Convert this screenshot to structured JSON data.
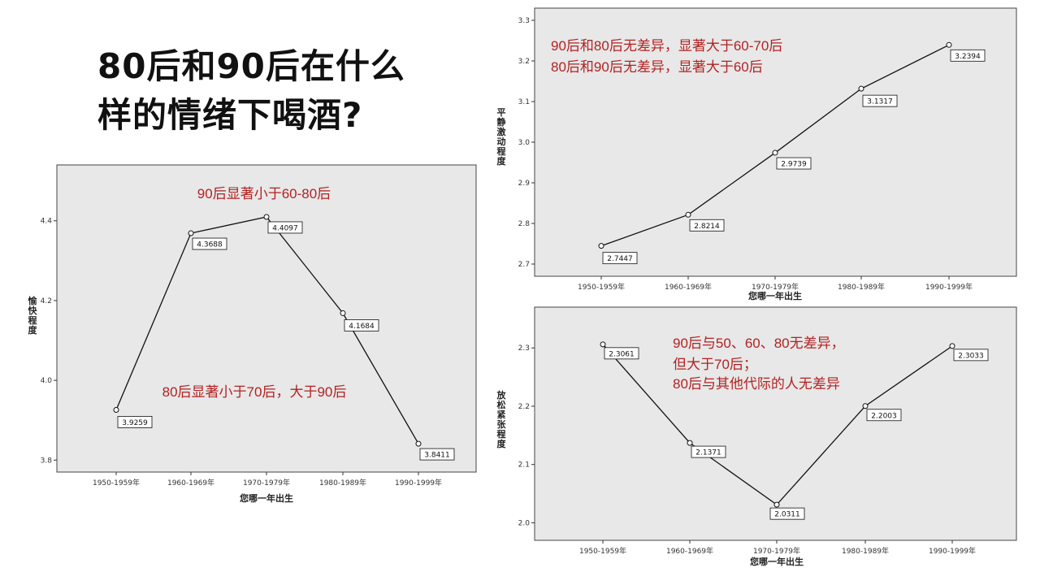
{
  "headline": {
    "line1": "80后和90后在什么",
    "line2": "样的情绪下喝酒?"
  },
  "colors": {
    "annotation": "#b32222",
    "plot_background": "#e8e8e8"
  },
  "chart_data": [
    {
      "type": "line",
      "categories": [
        "1950-1959年",
        "1960-1969年",
        "1970-1979年",
        "1980-1989年",
        "1990-1999年"
      ],
      "values": [
        3.9259,
        4.3688,
        4.4097,
        4.1684,
        3.8411
      ],
      "value_labels": [
        "3.9259",
        "4.3688",
        "4.4097",
        "4.1684",
        "3.8411"
      ],
      "ylim": [
        3.77,
        4.54
      ],
      "yticks": [
        3.8,
        4.0,
        4.2,
        4.4
      ],
      "ytick_labels": [
        "3.8",
        "4.0",
        "4.2",
        "4.4"
      ],
      "xlabel": "您哪一年出生",
      "ylabel": "愉快程度",
      "annotations": [
        "90后显著小于60-80后",
        "80后显著小于70后，大于90后"
      ]
    },
    {
      "type": "line",
      "categories": [
        "1950-1959年",
        "1960-1969年",
        "1970-1979年",
        "1980-1989年",
        "1990-1999年"
      ],
      "values": [
        2.7447,
        2.8214,
        2.9739,
        3.1317,
        3.2394
      ],
      "value_labels": [
        "2.7447",
        "2.8214",
        "2.9739",
        "3.1317",
        "3.2394"
      ],
      "ylim": [
        2.67,
        3.33
      ],
      "yticks": [
        2.7,
        2.8,
        2.9,
        3.0,
        3.1,
        3.2,
        3.3
      ],
      "ytick_labels": [
        "2.7",
        "2.8",
        "2.9",
        "3.0",
        "3.1",
        "3.2",
        "3.3"
      ],
      "xlabel": "您哪一年出生",
      "ylabel": "平静激动程度",
      "annotations": [
        "90后和80后无差异，显著大于60-70后",
        "80后和90后无差异，显著大于60后"
      ]
    },
    {
      "type": "line",
      "categories": [
        "1950-1959年",
        "1960-1969年",
        "1970-1979年",
        "1980-1989年",
        "1990-1999年"
      ],
      "values": [
        2.3061,
        2.1371,
        2.0311,
        2.2003,
        2.3033
      ],
      "value_labels": [
        "2.3061",
        "2.1371",
        "2.0311",
        "2.2003",
        "2.3033"
      ],
      "ylim": [
        1.97,
        2.37
      ],
      "yticks": [
        2.0,
        2.1,
        2.2,
        2.3
      ],
      "ytick_labels": [
        "2.0",
        "2.1",
        "2.2",
        "2.3"
      ],
      "xlabel": "您哪一年出生",
      "ylabel": "放松紧张程度",
      "annotations": [
        "90后与50、60、80无差异，",
        "但大于70后；",
        "80后与其他代际的人无差异"
      ]
    }
  ]
}
